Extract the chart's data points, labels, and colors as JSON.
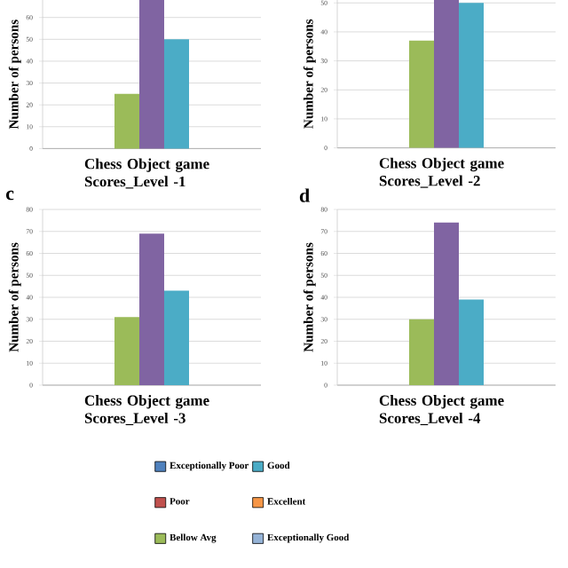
{
  "chart_data": [
    {
      "type": "bar",
      "categories": [
        "Chess Object game Scores_Level -1"
      ],
      "ylabel": "Number of persons",
      "ylim": [
        0,
        68
      ],
      "yticks": [
        0,
        10,
        20,
        30,
        40,
        50,
        60
      ],
      "grid": "y",
      "series": [
        {
          "color": "#4f81bd",
          "values": [
            null
          ]
        },
        {
          "color": "#c0504d",
          "values": [
            null
          ]
        },
        {
          "color": "#9bbb59",
          "values": [
            25
          ]
        },
        {
          "color": "#8064a2",
          "values": [
            68
          ]
        },
        {
          "color": "#4bacc6",
          "values": [
            50
          ]
        },
        {
          "color": "#f79646",
          "values": [
            null
          ]
        },
        {
          "color": "#95b3d7",
          "values": [
            null
          ]
        }
      ]
    },
    {
      "type": "bar",
      "categories": [
        "Chess Object game Scores_Level -2"
      ],
      "ylabel": "Number of persons",
      "ylim": [
        0,
        51
      ],
      "yticks": [
        0,
        10,
        20,
        30,
        40,
        50
      ],
      "grid": "y",
      "series": [
        {
          "color": "#4f81bd",
          "values": [
            null
          ]
        },
        {
          "color": "#c0504d",
          "values": [
            null
          ]
        },
        {
          "color": "#9bbb59",
          "values": [
            37
          ]
        },
        {
          "color": "#8064a2",
          "values": [
            51
          ]
        },
        {
          "color": "#4bacc6",
          "values": [
            50
          ]
        },
        {
          "color": "#f79646",
          "values": [
            null
          ]
        },
        {
          "color": "#95b3d7",
          "values": [
            null
          ]
        }
      ]
    },
    {
      "type": "bar",
      "title": "c",
      "categories": [
        "Chess Object game Scores_Level -3"
      ],
      "ylabel": "Number of persons",
      "ylim": [
        0,
        80
      ],
      "yticks": [
        0,
        10,
        20,
        30,
        40,
        50,
        60,
        70,
        80
      ],
      "grid": "y",
      "series": [
        {
          "color": "#4f81bd",
          "values": [
            null
          ]
        },
        {
          "color": "#c0504d",
          "values": [
            null
          ]
        },
        {
          "color": "#9bbb59",
          "values": [
            31
          ]
        },
        {
          "color": "#8064a2",
          "values": [
            69
          ]
        },
        {
          "color": "#4bacc6",
          "values": [
            43
          ]
        },
        {
          "color": "#f79646",
          "values": [
            null
          ]
        },
        {
          "color": "#95b3d7",
          "values": [
            null
          ]
        }
      ]
    },
    {
      "type": "bar",
      "title": "d",
      "categories": [
        "Chess Object game Scores_Level -4"
      ],
      "ylabel": "Number of persons",
      "ylim": [
        0,
        80
      ],
      "yticks": [
        0,
        10,
        20,
        30,
        40,
        50,
        60,
        70,
        80
      ],
      "grid": "y",
      "legend": "bottom",
      "series": [
        {
          "name": "Exceptionally Poor",
          "color": "#4f81bd",
          "values": [
            null
          ]
        },
        {
          "name": "Poor",
          "color": "#c0504d",
          "values": [
            null
          ]
        },
        {
          "name": "Bellow Avg",
          "color": "#9bbb59",
          "values": [
            30
          ]
        },
        {
          "color": "#8064a2",
          "values": [
            74
          ]
        },
        {
          "name": "Good",
          "color": "#4bacc6",
          "values": [
            39
          ]
        },
        {
          "name": "Excellent",
          "color": "#f79646",
          "values": [
            null
          ]
        },
        {
          "name": "Exceptionally Good",
          "color": "#95b3d7",
          "values": [
            null
          ]
        }
      ]
    }
  ]
}
